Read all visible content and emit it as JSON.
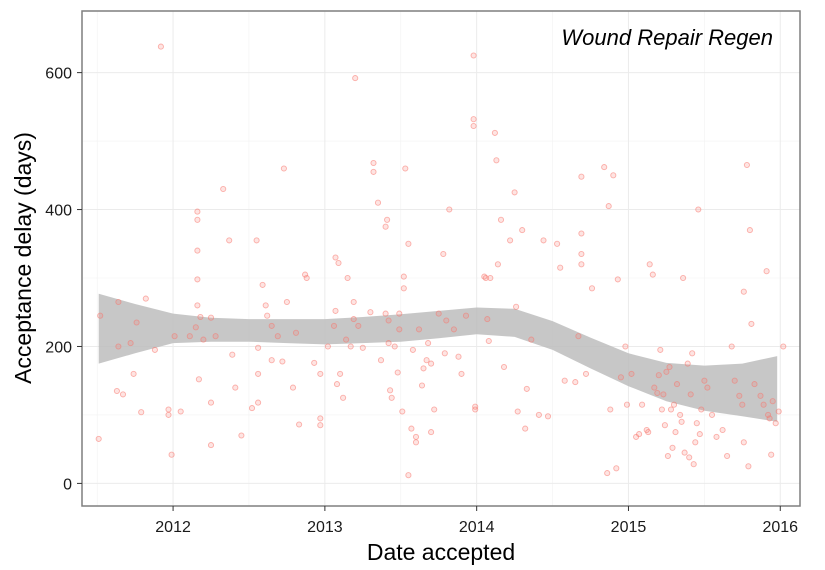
{
  "chart_data": {
    "type": "scatter",
    "annotation": "Wound Repair Regen",
    "xlabel": "Date accepted",
    "ylabel": "Acceptance delay (days)",
    "xlim": [
      2011.4,
      2016.13
    ],
    "ylim": [
      -33,
      690
    ],
    "x_ticks": [
      2012,
      2013,
      2014,
      2015,
      2016
    ],
    "x_tick_labels": [
      "2012",
      "2013",
      "2014",
      "2015",
      "2016"
    ],
    "y_ticks": [
      0,
      200,
      400,
      600
    ],
    "y_tick_labels": [
      "0",
      "200",
      "400",
      "600"
    ],
    "grid": true,
    "point_color": "#f8766d",
    "band_color": "#bdbdbd",
    "border_color": "#7f7f7f",
    "points": [
      [
        2011.51,
        65
      ],
      [
        2011.52,
        245
      ],
      [
        2011.63,
        135
      ],
      [
        2011.64,
        200
      ],
      [
        2011.64,
        265
      ],
      [
        2011.67,
        130
      ],
      [
        2011.72,
        205
      ],
      [
        2011.74,
        160
      ],
      [
        2011.76,
        235
      ],
      [
        2011.79,
        104
      ],
      [
        2011.82,
        270
      ],
      [
        2011.88,
        195
      ],
      [
        2011.92,
        638
      ],
      [
        2011.97,
        108
      ],
      [
        2011.97,
        100
      ],
      [
        2011.99,
        42
      ],
      [
        2012.01,
        215
      ],
      [
        2012.05,
        105
      ],
      [
        2012.11,
        215
      ],
      [
        2012.15,
        228
      ],
      [
        2012.16,
        260
      ],
      [
        2012.16,
        340
      ],
      [
        2012.16,
        397
      ],
      [
        2012.16,
        385
      ],
      [
        2012.16,
        298
      ],
      [
        2012.17,
        152
      ],
      [
        2012.18,
        243
      ],
      [
        2012.2,
        210
      ],
      [
        2012.25,
        118
      ],
      [
        2012.25,
        56
      ],
      [
        2012.25,
        242
      ],
      [
        2012.28,
        215
      ],
      [
        2012.33,
        430
      ],
      [
        2012.37,
        355
      ],
      [
        2012.39,
        188
      ],
      [
        2012.41,
        140
      ],
      [
        2012.45,
        70
      ],
      [
        2012.52,
        110
      ],
      [
        2012.55,
        355
      ],
      [
        2012.56,
        198
      ],
      [
        2012.56,
        160
      ],
      [
        2012.56,
        118
      ],
      [
        2012.59,
        290
      ],
      [
        2012.61,
        260
      ],
      [
        2012.62,
        245
      ],
      [
        2012.65,
        230
      ],
      [
        2012.65,
        180
      ],
      [
        2012.69,
        215
      ],
      [
        2012.72,
        178
      ],
      [
        2012.73,
        460
      ],
      [
        2012.75,
        265
      ],
      [
        2012.79,
        140
      ],
      [
        2012.81,
        220
      ],
      [
        2012.83,
        86
      ],
      [
        2012.87,
        305
      ],
      [
        2012.88,
        300
      ],
      [
        2012.93,
        176
      ],
      [
        2012.97,
        160
      ],
      [
        2012.97,
        95
      ],
      [
        2012.97,
        85
      ],
      [
        2013.02,
        200
      ],
      [
        2013.06,
        230
      ],
      [
        2013.07,
        252
      ],
      [
        2013.07,
        330
      ],
      [
        2013.09,
        322
      ],
      [
        2013.08,
        145
      ],
      [
        2013.1,
        160
      ],
      [
        2013.12,
        125
      ],
      [
        2013.14,
        210
      ],
      [
        2013.15,
        300
      ],
      [
        2013.17,
        200
      ],
      [
        2013.19,
        240
      ],
      [
        2013.19,
        265
      ],
      [
        2013.2,
        592
      ],
      [
        2013.22,
        230
      ],
      [
        2013.25,
        198
      ],
      [
        2013.3,
        250
      ],
      [
        2013.32,
        468
      ],
      [
        2013.32,
        455
      ],
      [
        2013.35,
        410
      ],
      [
        2013.37,
        180
      ],
      [
        2013.4,
        248
      ],
      [
        2013.4,
        375
      ],
      [
        2013.41,
        385
      ],
      [
        2013.42,
        238
      ],
      [
        2013.42,
        205
      ],
      [
        2013.43,
        136
      ],
      [
        2013.44,
        125
      ],
      [
        2013.46,
        200
      ],
      [
        2013.48,
        162
      ],
      [
        2013.49,
        248
      ],
      [
        2013.49,
        225
      ],
      [
        2013.51,
        105
      ],
      [
        2013.52,
        302
      ],
      [
        2013.52,
        285
      ],
      [
        2013.53,
        460
      ],
      [
        2013.55,
        350
      ],
      [
        2013.55,
        12
      ],
      [
        2013.57,
        80
      ],
      [
        2013.58,
        195
      ],
      [
        2013.6,
        68
      ],
      [
        2013.6,
        60
      ],
      [
        2013.62,
        225
      ],
      [
        2013.64,
        143
      ],
      [
        2013.65,
        168
      ],
      [
        2013.67,
        180
      ],
      [
        2013.68,
        205
      ],
      [
        2013.7,
        175
      ],
      [
        2013.7,
        75
      ],
      [
        2013.72,
        108
      ],
      [
        2013.75,
        248
      ],
      [
        2013.78,
        335
      ],
      [
        2013.79,
        190
      ],
      [
        2013.8,
        238
      ],
      [
        2013.82,
        400
      ],
      [
        2013.85,
        225
      ],
      [
        2013.88,
        185
      ],
      [
        2013.9,
        160
      ],
      [
        2013.93,
        245
      ],
      [
        2013.98,
        625
      ],
      [
        2013.98,
        532
      ],
      [
        2013.98,
        522
      ],
      [
        2013.99,
        112
      ],
      [
        2013.99,
        108
      ],
      [
        2014.05,
        302
      ],
      [
        2014.06,
        300
      ],
      [
        2014.07,
        240
      ],
      [
        2014.08,
        208
      ],
      [
        2014.09,
        300
      ],
      [
        2014.12,
        512
      ],
      [
        2014.13,
        472
      ],
      [
        2014.14,
        320
      ],
      [
        2014.16,
        385
      ],
      [
        2014.18,
        170
      ],
      [
        2014.22,
        355
      ],
      [
        2014.25,
        425
      ],
      [
        2014.26,
        258
      ],
      [
        2014.27,
        105
      ],
      [
        2014.3,
        370
      ],
      [
        2014.32,
        80
      ],
      [
        2014.33,
        138
      ],
      [
        2014.36,
        210
      ],
      [
        2014.41,
        100
      ],
      [
        2014.44,
        355
      ],
      [
        2014.47,
        98
      ],
      [
        2014.53,
        350
      ],
      [
        2014.55,
        315
      ],
      [
        2014.58,
        150
      ],
      [
        2014.65,
        148
      ],
      [
        2014.67,
        215
      ],
      [
        2014.69,
        448
      ],
      [
        2014.69,
        365
      ],
      [
        2014.69,
        335
      ],
      [
        2014.69,
        320
      ],
      [
        2014.72,
        160
      ],
      [
        2014.76,
        285
      ],
      [
        2014.84,
        462
      ],
      [
        2014.86,
        15
      ],
      [
        2014.87,
        405
      ],
      [
        2014.88,
        108
      ],
      [
        2014.9,
        450
      ],
      [
        2014.92,
        22
      ],
      [
        2014.93,
        298
      ],
      [
        2014.95,
        155
      ],
      [
        2014.98,
        200
      ],
      [
        2014.99,
        115
      ],
      [
        2015.02,
        160
      ],
      [
        2015.05,
        68
      ],
      [
        2015.07,
        72
      ],
      [
        2015.09,
        115
      ],
      [
        2015.12,
        78
      ],
      [
        2015.13,
        75
      ],
      [
        2015.14,
        320
      ],
      [
        2015.16,
        305
      ],
      [
        2015.17,
        140
      ],
      [
        2015.19,
        132
      ],
      [
        2015.2,
        158
      ],
      [
        2015.21,
        195
      ],
      [
        2015.22,
        108
      ],
      [
        2015.23,
        130
      ],
      [
        2015.24,
        85
      ],
      [
        2015.25,
        163
      ],
      [
        2015.26,
        40
      ],
      [
        2015.27,
        170
      ],
      [
        2015.28,
        108
      ],
      [
        2015.29,
        52
      ],
      [
        2015.3,
        115
      ],
      [
        2015.31,
        75
      ],
      [
        2015.32,
        145
      ],
      [
        2015.34,
        100
      ],
      [
        2015.35,
        90
      ],
      [
        2015.36,
        300
      ],
      [
        2015.37,
        45
      ],
      [
        2015.39,
        175
      ],
      [
        2015.4,
        38
      ],
      [
        2015.41,
        130
      ],
      [
        2015.42,
        190
      ],
      [
        2015.43,
        28
      ],
      [
        2015.44,
        60
      ],
      [
        2015.45,
        88
      ],
      [
        2015.46,
        400
      ],
      [
        2015.47,
        72
      ],
      [
        2015.48,
        108
      ],
      [
        2015.5,
        150
      ],
      [
        2015.52,
        140
      ],
      [
        2015.55,
        100
      ],
      [
        2015.58,
        68
      ],
      [
        2015.62,
        78
      ],
      [
        2015.65,
        40
      ],
      [
        2015.68,
        200
      ],
      [
        2015.7,
        150
      ],
      [
        2015.73,
        128
      ],
      [
        2015.75,
        115
      ],
      [
        2015.76,
        60
      ],
      [
        2015.76,
        280
      ],
      [
        2015.78,
        465
      ],
      [
        2015.79,
        25
      ],
      [
        2015.8,
        370
      ],
      [
        2015.81,
        233
      ],
      [
        2015.83,
        145
      ],
      [
        2015.87,
        128
      ],
      [
        2015.89,
        115
      ],
      [
        2015.91,
        310
      ],
      [
        2015.92,
        100
      ],
      [
        2015.93,
        95
      ],
      [
        2015.94,
        42
      ],
      [
        2015.95,
        120
      ],
      [
        2015.97,
        88
      ],
      [
        2015.99,
        105
      ],
      [
        2016.02,
        200
      ]
    ],
    "smooth": {
      "x": [
        2011.51,
        2011.75,
        2012.0,
        2012.25,
        2012.5,
        2012.75,
        2013.0,
        2013.25,
        2013.5,
        2013.75,
        2014.0,
        2014.25,
        2014.5,
        2014.75,
        2015.0,
        2015.25,
        2015.5,
        2015.75,
        2015.98
      ],
      "lower": [
        175,
        190,
        205,
        207,
        207,
        205,
        203,
        205,
        207,
        212,
        218,
        214,
        195,
        168,
        142,
        120,
        106,
        98,
        90
      ],
      "upper": [
        277,
        262,
        248,
        242,
        240,
        240,
        240,
        243,
        247,
        252,
        257,
        255,
        237,
        213,
        190,
        176,
        172,
        175,
        186
      ]
    }
  }
}
